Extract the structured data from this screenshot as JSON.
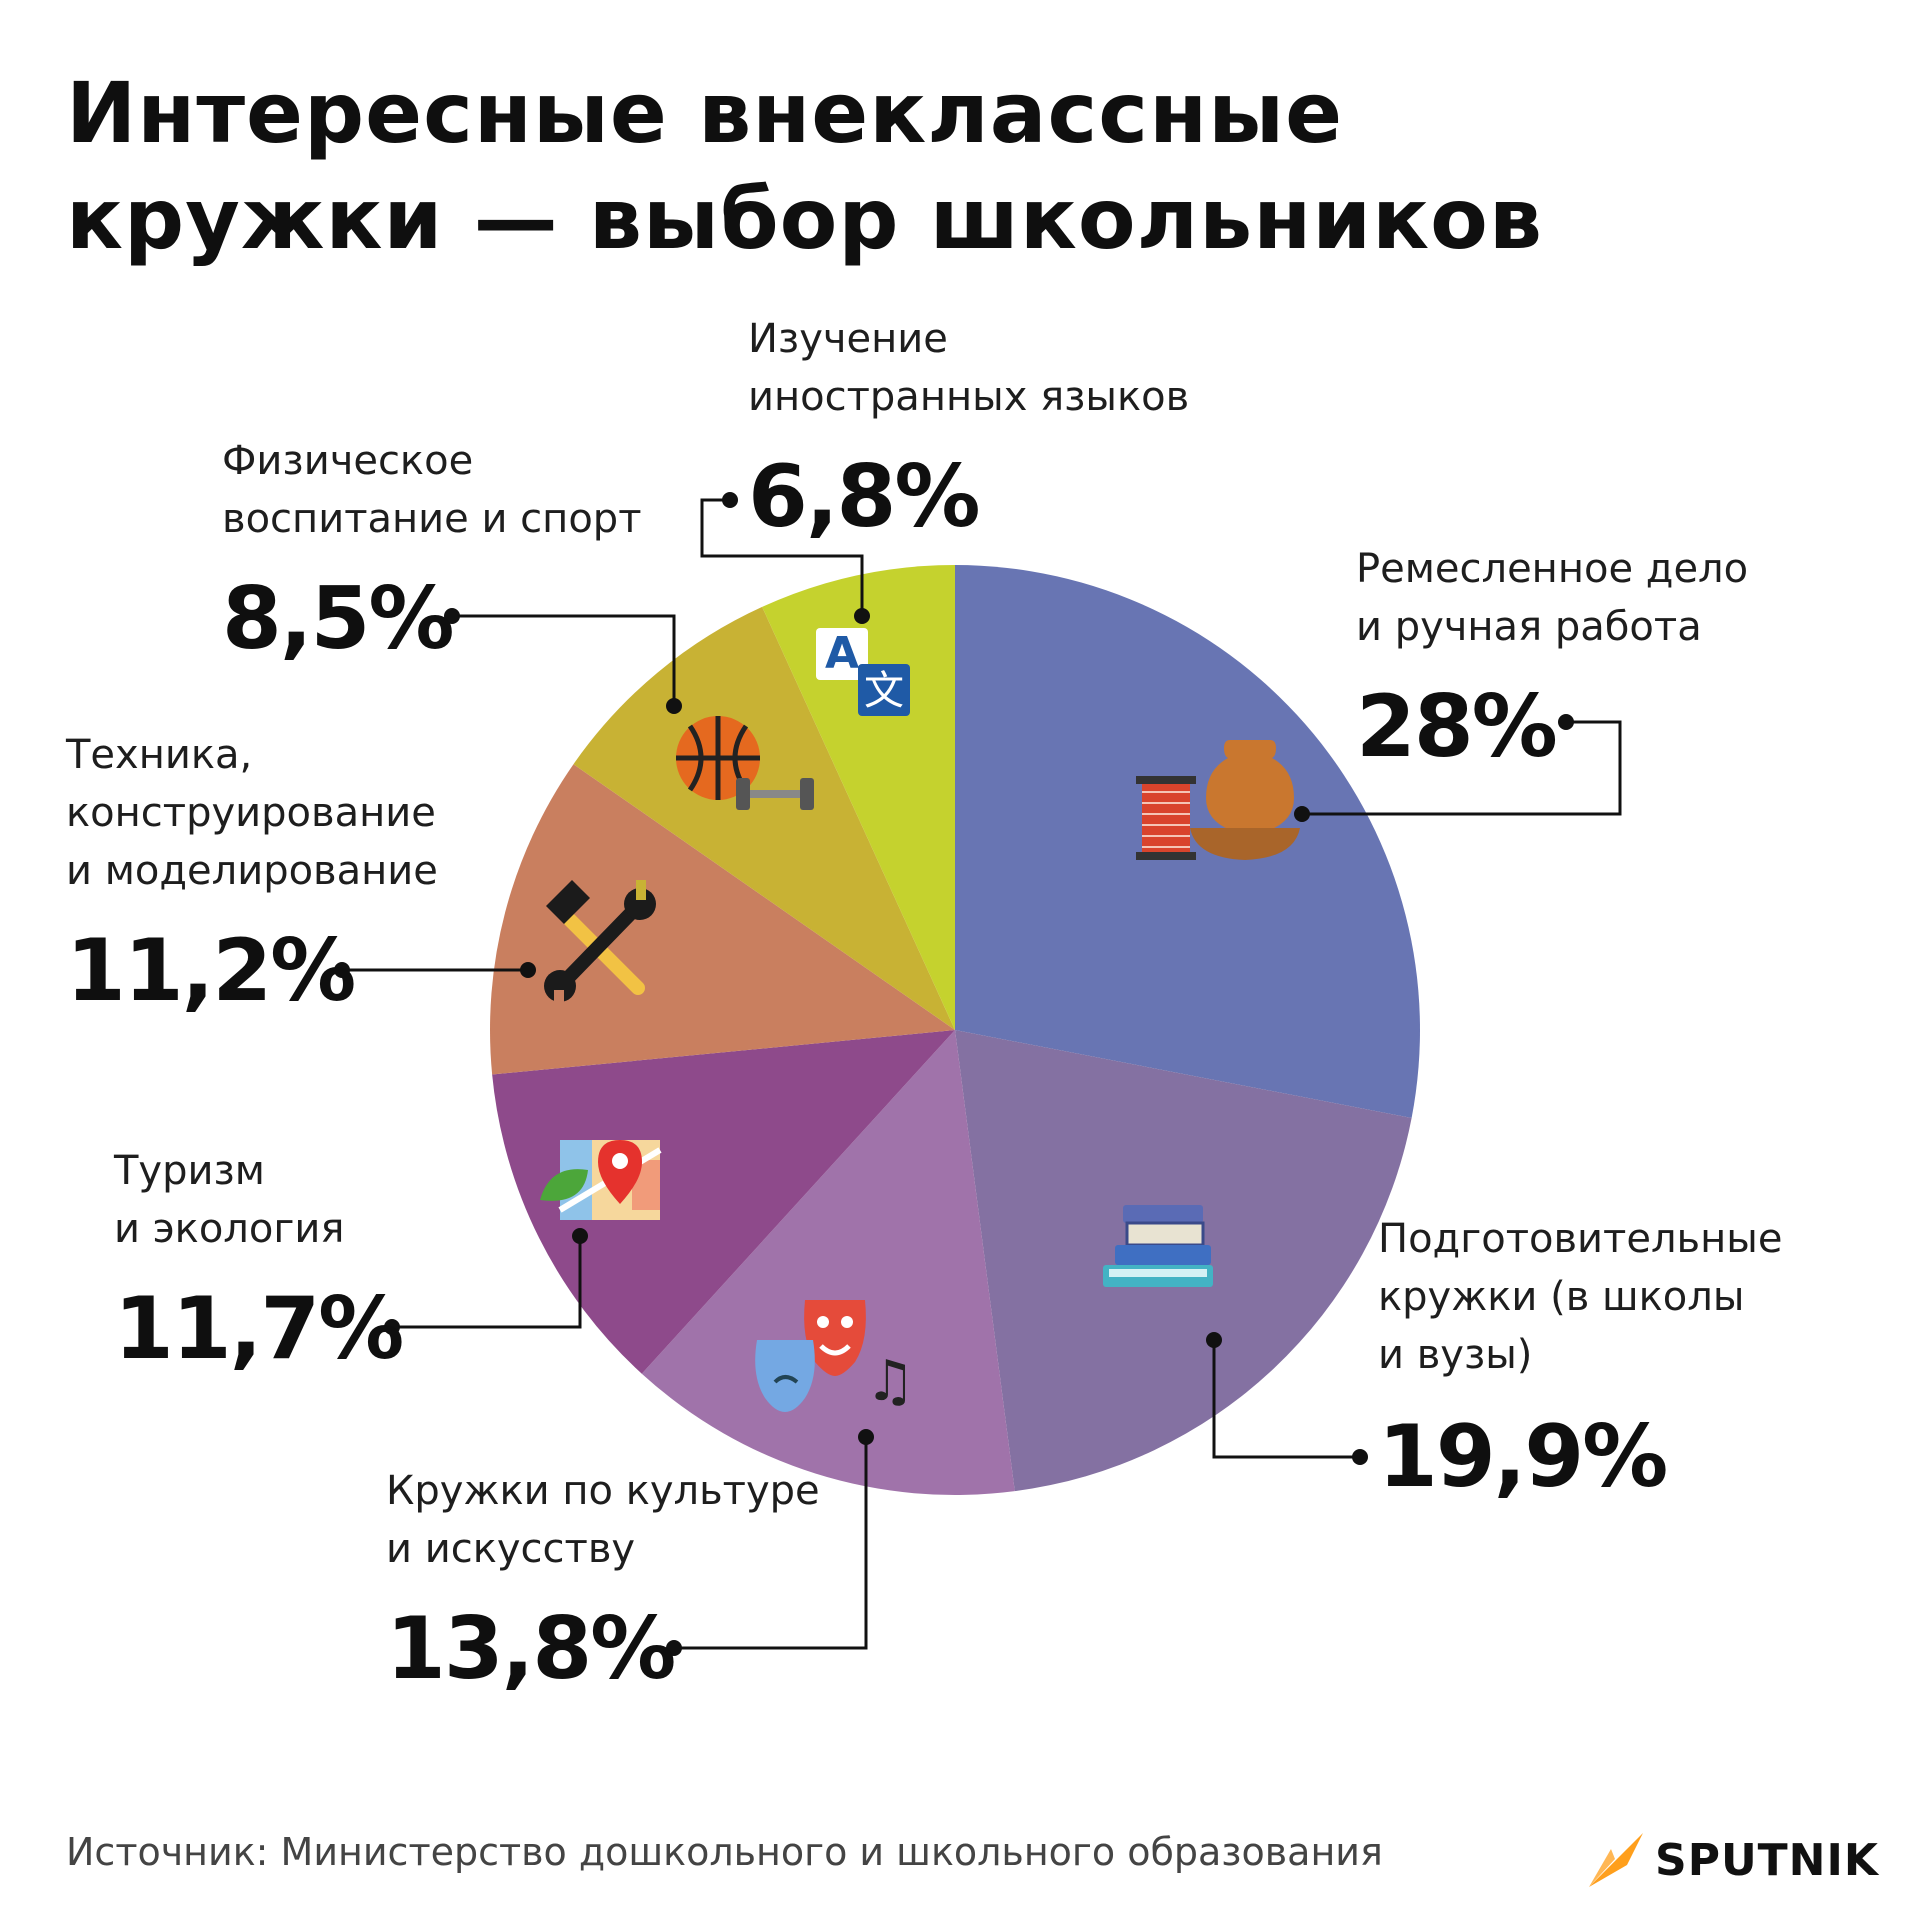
{
  "title_lines": [
    "Интересные внеклассные",
    "кружки — выбор школьников"
  ],
  "source": "Источник: Министерство дошкольного и школьного образования",
  "brand": "SPUTNIK",
  "brand_color": "#ff9f1c",
  "chart_data": {
    "type": "pie",
    "start": "12 o'clock",
    "direction": "clockwise",
    "legend": "none",
    "slices": [
      {
        "label_lines": [
          "Ремесленное дело",
          "и ручная работа"
        ],
        "value": 28,
        "value_label": "28%",
        "color": "#6875b3",
        "icon": "pottery-icon"
      },
      {
        "label_lines": [
          "Подготовительные",
          "кружки (в школы",
          "и вузы)"
        ],
        "value": 19.9,
        "value_label": "19,9%",
        "color": "#8471a2",
        "icon": "books-icon"
      },
      {
        "label_lines": [
          "Кружки по культуре",
          "и искусству"
        ],
        "value": 13.8,
        "value_label": "13,8%",
        "color": "#a073aa",
        "icon": "theater-masks-icon"
      },
      {
        "label_lines": [
          "Туризм",
          "и экология"
        ],
        "value": 11.7,
        "value_label": "11,7%",
        "color": "#8e4a8b",
        "icon": "map-pin-icon"
      },
      {
        "label_lines": [
          "Техника,",
          "конструирование",
          "и моделирование"
        ],
        "value": 11.2,
        "value_label": "11,2%",
        "color": "#c97f5f",
        "icon": "hammer-wrench-icon"
      },
      {
        "label_lines": [
          "Физическое",
          "воспитание и спорт"
        ],
        "value": 8.5,
        "value_label": "8,5%",
        "color": "#c8b234",
        "icon": "basketball-icon"
      },
      {
        "label_lines": [
          "Изучение",
          "иностранных языков"
        ],
        "value": 6.8,
        "value_label": "6,8%",
        "color": "#c5d22e",
        "icon": "translate-icon"
      }
    ]
  }
}
